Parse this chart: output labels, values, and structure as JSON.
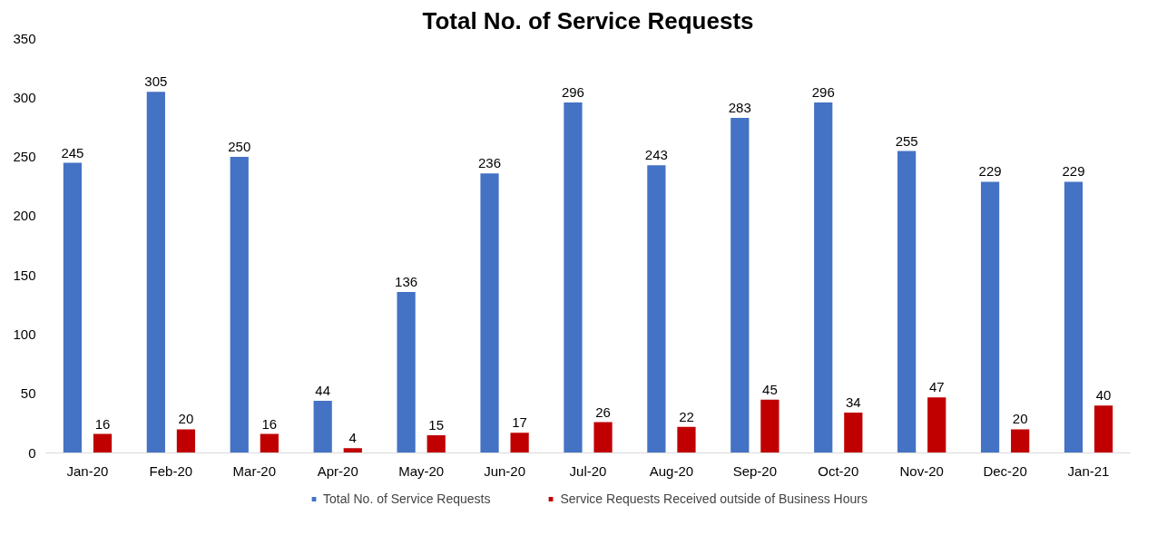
{
  "chart_data": {
    "type": "bar",
    "title": "Total No. of Service Requests",
    "categories": [
      "Jan-20",
      "Feb-20",
      "Mar-20",
      "Apr-20",
      "May-20",
      "Jun-20",
      "Jul-20",
      "Aug-20",
      "Sep-20",
      "Oct-20",
      "Nov-20",
      "Dec-20",
      "Jan-21"
    ],
    "series": [
      {
        "name": "Total No. of Service Requests",
        "color": "#4472c4",
        "values": [
          245,
          305,
          250,
          44,
          136,
          236,
          296,
          243,
          283,
          296,
          255,
          229,
          229
        ]
      },
      {
        "name": "Service Requests Received outside of Business Hours",
        "color": "#c00000",
        "values": [
          16,
          20,
          16,
          4,
          15,
          17,
          26,
          22,
          45,
          34,
          47,
          20,
          40
        ]
      }
    ],
    "ylim": [
      0,
      350
    ],
    "yticks": [
      0,
      50,
      100,
      150,
      200,
      250,
      300,
      350
    ],
    "grid": false,
    "legend": "bottom",
    "data_labels": true
  }
}
